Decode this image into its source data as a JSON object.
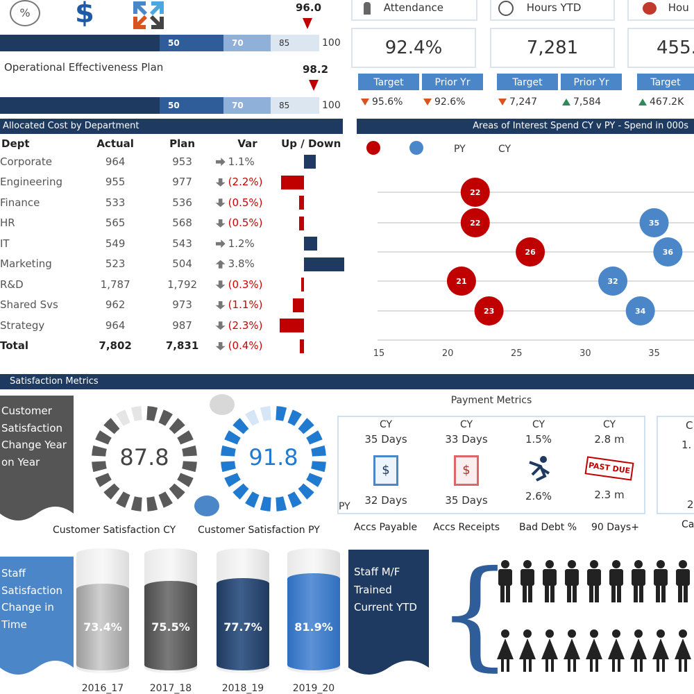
{
  "top_icons": {
    "icon1": "percent-icon",
    "icon2": "dollar-icon",
    "icon3": "arrows-icon"
  },
  "plan1": {
    "marker": "96.0",
    "s1": "50",
    "s2": "70",
    "s3": "85",
    "max": "100"
  },
  "plan2": {
    "title": "Operational Effectiveness Plan",
    "marker": "98.2",
    "s1": "50",
    "s2": "70",
    "s3": "85",
    "max": "100"
  },
  "kpis": [
    {
      "title": "Attendance",
      "value": "92.4%",
      "target_label": "Target",
      "prior_label": "Prior Yr",
      "target": "95.6%",
      "prior": "92.6%"
    },
    {
      "title": "Hours YTD",
      "value": "7,281",
      "target_label": "Target",
      "prior_label": "Prior Yr",
      "target": "7,247",
      "prior": "7,584"
    },
    {
      "title": "Hou",
      "value": "455.",
      "target_label": "Target",
      "target": "467.2K"
    }
  ],
  "cost": {
    "title": "Allocated Cost by Department",
    "headers": [
      "Dept",
      "Actual",
      "Plan",
      "Var",
      "Up / Down"
    ],
    "rows": [
      {
        "dept": "Corporate",
        "actual": "964",
        "plan": "953",
        "var": "1.1%",
        "dir": "right",
        "bar": 1.1
      },
      {
        "dept": "Engineering",
        "actual": "955",
        "plan": "977",
        "var": "(2.2%)",
        "dir": "down",
        "bar": -2.2
      },
      {
        "dept": "Finance",
        "actual": "533",
        "plan": "536",
        "var": "(0.5%)",
        "dir": "down",
        "bar": -0.5
      },
      {
        "dept": "HR",
        "actual": "565",
        "plan": "568",
        "var": "(0.5%)",
        "dir": "down",
        "bar": -0.5
      },
      {
        "dept": "IT",
        "actual": "549",
        "plan": "543",
        "var": "1.2%",
        "dir": "right",
        "bar": 1.2
      },
      {
        "dept": "Marketing",
        "actual": "523",
        "plan": "504",
        "var": "3.8%",
        "dir": "up",
        "bar": 3.8
      },
      {
        "dept": "R&D",
        "actual": "1,787",
        "plan": "1,792",
        "var": "(0.3%)",
        "dir": "down",
        "bar": -0.3
      },
      {
        "dept": "Shared Svs",
        "actual": "962",
        "plan": "973",
        "var": "(1.1%)",
        "dir": "down",
        "bar": -1.1
      },
      {
        "dept": "Strategy",
        "actual": "964",
        "plan": "987",
        "var": "(2.3%)",
        "dir": "down",
        "bar": -2.3
      }
    ],
    "total": {
      "dept": "Total",
      "actual": "7,802",
      "plan": "7,831",
      "var": "(0.4%)",
      "dir": "down",
      "bar": -0.4
    }
  },
  "chart_data": {
    "type": "scatter",
    "title": "Areas of Interest Spend CY v PY - Spend in 000s",
    "legend": [
      "PY",
      "CY"
    ],
    "colors": {
      "py": "#c00000",
      "cy": "#4a86c8"
    },
    "xticks": [
      "15",
      "20",
      "25",
      "30",
      "35"
    ],
    "xlim": [
      15,
      38
    ],
    "rows": 5,
    "series": [
      {
        "name": "PY",
        "points": [
          {
            "row": 0,
            "x": 22,
            "label": "22"
          },
          {
            "row": 1,
            "x": 22,
            "label": "22"
          },
          {
            "row": 2,
            "x": 26,
            "label": "26"
          },
          {
            "row": 3,
            "x": 21,
            "label": "21"
          },
          {
            "row": 4,
            "x": 23,
            "label": "23"
          }
        ]
      },
      {
        "name": "CY",
        "points": [
          {
            "row": 1,
            "x": 35,
            "label": "35"
          },
          {
            "row": 2,
            "x": 36,
            "label": "36"
          },
          {
            "row": 3,
            "x": 32,
            "label": "32"
          },
          {
            "row": 4,
            "x": 34,
            "label": "34"
          }
        ]
      }
    ]
  },
  "satisfaction": {
    "title": "Satisfaction Metrics",
    "change_label": "Customer Satisfaction Change Year on Year",
    "cy_value": "87.8",
    "py_value": "91.8",
    "cy_label": "Customer Satisfaction CY",
    "py_label": "Customer Satisfaction PY"
  },
  "payment": {
    "title": "Payment Metrics",
    "cols": [
      {
        "cy_label": "CY",
        "cy": "35 Days",
        "py": "32 Days",
        "name": "Accs Payable",
        "icon": "invoice-icon"
      },
      {
        "cy_label": "CY",
        "cy": "33 Days",
        "py": "35 Days",
        "name": "Accs Receipts",
        "icon": "receipt-icon"
      },
      {
        "cy_label": "CY",
        "cy": "1.5%",
        "py": "2.6%",
        "name": "Bad Debt %",
        "icon": "falling-man-icon"
      },
      {
        "cy_label": "CY",
        "cy": "2.8 m",
        "py": "2.3 m",
        "name": "90 Days+",
        "icon": "past-due-stamp"
      }
    ],
    "py_label": "PY",
    "stamp_text": "PAST DUE",
    "extra": {
      "c": "C",
      "v1": "1.",
      "v2": "2",
      "name": "Ca"
    }
  },
  "staff": {
    "change_label": "Staff Satisfaction Change in Time",
    "years": [
      "2016_17",
      "2017_18",
      "2018_19",
      "2019_20"
    ],
    "values": [
      "73.4%",
      "75.5%",
      "77.7%",
      "81.9%"
    ],
    "levels": [
      73.4,
      75.5,
      77.7,
      81.9
    ],
    "trained_label": "Staff M/F Trained Current YTD",
    "brace": "{"
  }
}
